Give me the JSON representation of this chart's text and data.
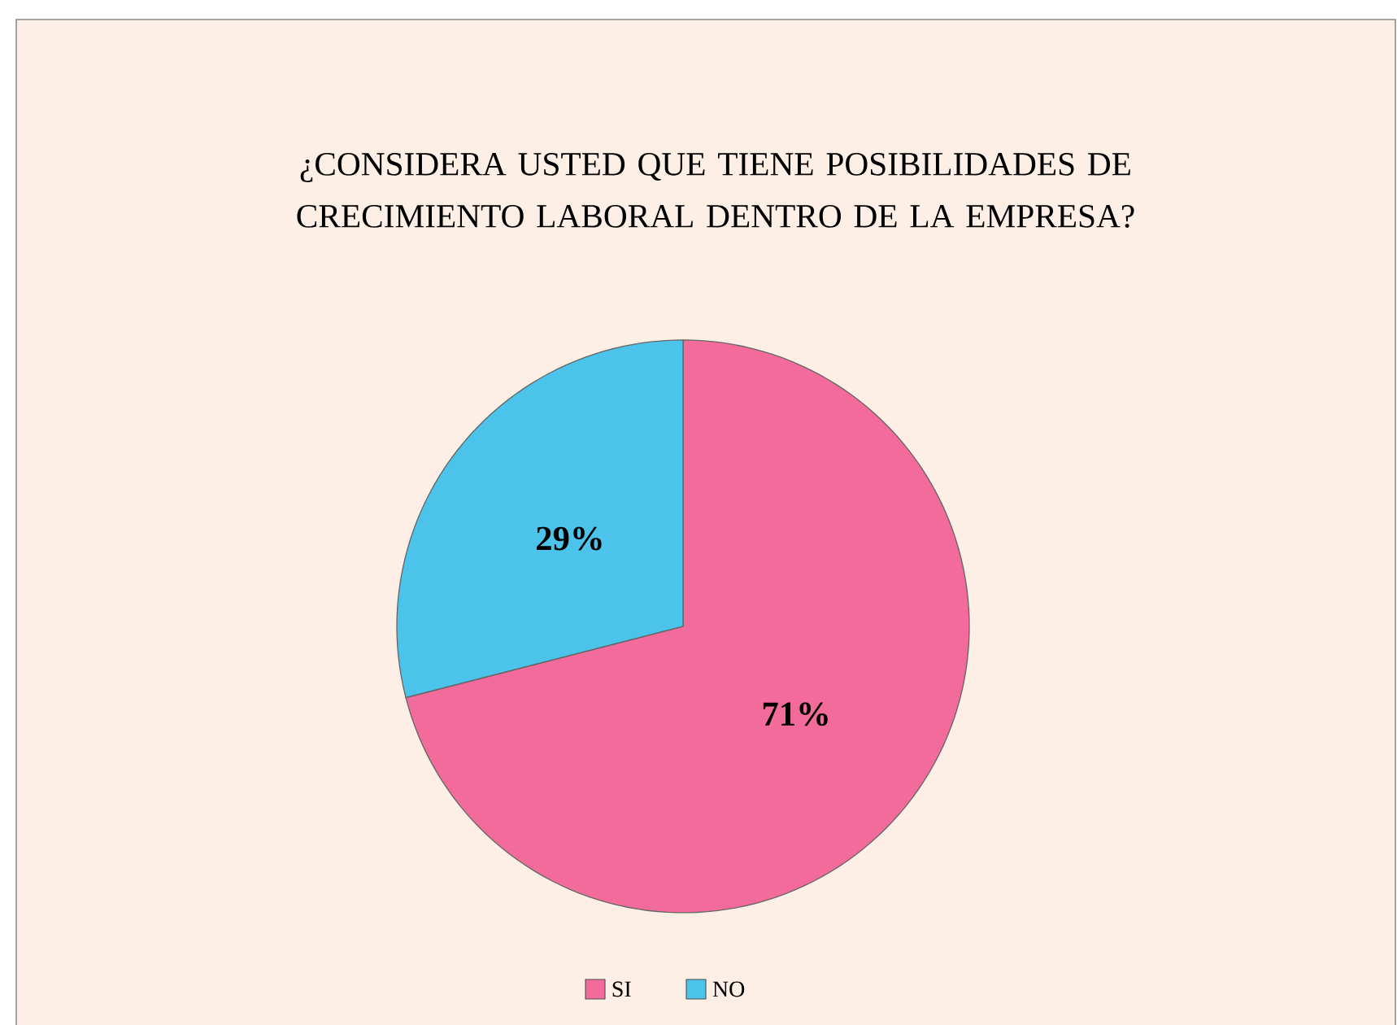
{
  "chart_data": {
    "type": "pie",
    "title": "¿CONSIDERA USTED QUE TIENE POSIBILIDADES DE CRECIMIENTO LABORAL DENTRO DE LA EMPRESA?",
    "categories": [
      "SI",
      "NO"
    ],
    "values": [
      71,
      29
    ],
    "value_labels": [
      "71%",
      "29%"
    ],
    "colors": [
      "#f26b9b",
      "#4cc3ea"
    ],
    "legend": "bottom"
  }
}
